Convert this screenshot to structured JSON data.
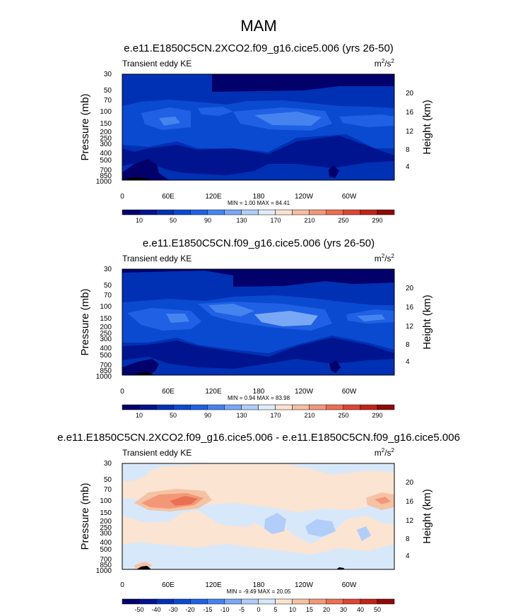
{
  "page_title": "MAM",
  "chart_data": [
    {
      "type": "heatmap",
      "title": "e.e11.E1850C5CN.2XCO2.f09_g16.cice5.006 (yrs 26-50)",
      "variable": "Transient eddy KE",
      "units": {
        "base": "m",
        "sup1": "2",
        "slash": "/s",
        "sup2": "2"
      },
      "ylabel": "Pressure (mb)",
      "ylabel_right": "Height (km)",
      "x_tick_labels": [
        "0",
        "60E",
        "120E",
        "180",
        "120W",
        "60W"
      ],
      "y_tick_labels": [
        "30",
        "50",
        "70",
        "100",
        "150",
        "200",
        "250",
        "300",
        "400",
        "500",
        "700",
        "850",
        "1000"
      ],
      "height_tick_labels": [
        "20",
        "16",
        "12",
        "8",
        "4"
      ],
      "stats": "MIN =   1.00  MAX =  84.41",
      "min": 1.0,
      "max": 84.41,
      "colorbar_labels": [
        "10",
        "50",
        "90",
        "130",
        "170",
        "210",
        "250",
        "290"
      ]
    },
    {
      "type": "heatmap",
      "title": "e.e11.E1850C5CN.f09_g16.cice5.006 (yrs 26-50)",
      "variable": "Transient eddy KE",
      "units": {
        "base": "m",
        "sup1": "2",
        "slash": "/s",
        "sup2": "2"
      },
      "ylabel": "Pressure (mb)",
      "ylabel_right": "Height (km)",
      "x_tick_labels": [
        "0",
        "60E",
        "120E",
        "180",
        "120W",
        "60W"
      ],
      "y_tick_labels": [
        "30",
        "50",
        "70",
        "100",
        "150",
        "200",
        "250",
        "300",
        "400",
        "500",
        "700",
        "850",
        "1000"
      ],
      "height_tick_labels": [
        "20",
        "16",
        "12",
        "8",
        "4"
      ],
      "stats": "MIN =   0.94  MAX =  83.98",
      "min": 0.94,
      "max": 83.98,
      "colorbar_labels": [
        "10",
        "50",
        "90",
        "130",
        "170",
        "210",
        "250",
        "290"
      ]
    },
    {
      "type": "heatmap",
      "title": "e.e11.E1850C5CN.2XCO2.f09_g16.cice5.006 - e.e11.E1850C5CN.f09_g16.cice5.006",
      "variable": "Transient eddy KE",
      "units": {
        "base": "m",
        "sup1": "2",
        "slash": "/s",
        "sup2": "2"
      },
      "ylabel": "Pressure (mb)",
      "ylabel_right": "Height (km)",
      "x_tick_labels": [
        "0",
        "60E",
        "120E",
        "180",
        "120W",
        "60W"
      ],
      "y_tick_labels": [
        "30",
        "50",
        "70",
        "100",
        "150",
        "200",
        "250",
        "300",
        "400",
        "500",
        "700",
        "850",
        "1000"
      ],
      "height_tick_labels": [
        "20",
        "16",
        "12",
        "8",
        "4"
      ],
      "stats": "MIN =  -9.49  MAX =  20.05",
      "min": -9.49,
      "max": 20.05,
      "colorbar_labels": [
        "-50",
        "-40",
        "-30",
        "-20",
        "-15",
        "-10",
        "-5",
        "0",
        "5",
        "10",
        "15",
        "20",
        "30",
        "40",
        "50"
      ]
    }
  ],
  "colors": {
    "seq": [
      "#02006b",
      "#00148f",
      "#0030b4",
      "#0a4ad0",
      "#2060e4",
      "#4583ef",
      "#79a8f6",
      "#b1cdf9",
      "#e1ecfb",
      "#fbe2d2",
      "#f6bea2",
      "#f2977a",
      "#eb6e54",
      "#dc4634",
      "#c12418",
      "#8e0a0a"
    ],
    "div": [
      "#02006b",
      "#00148f",
      "#0030b4",
      "#0a4ad0",
      "#2060e4",
      "#4583ef",
      "#79a8f6",
      "#b1cdf9",
      "#d8e8fb",
      "#fbe4d2",
      "#f6c2a4",
      "#f29878",
      "#eb7052",
      "#dc4634",
      "#c12418",
      "#8e0a0a"
    ]
  }
}
